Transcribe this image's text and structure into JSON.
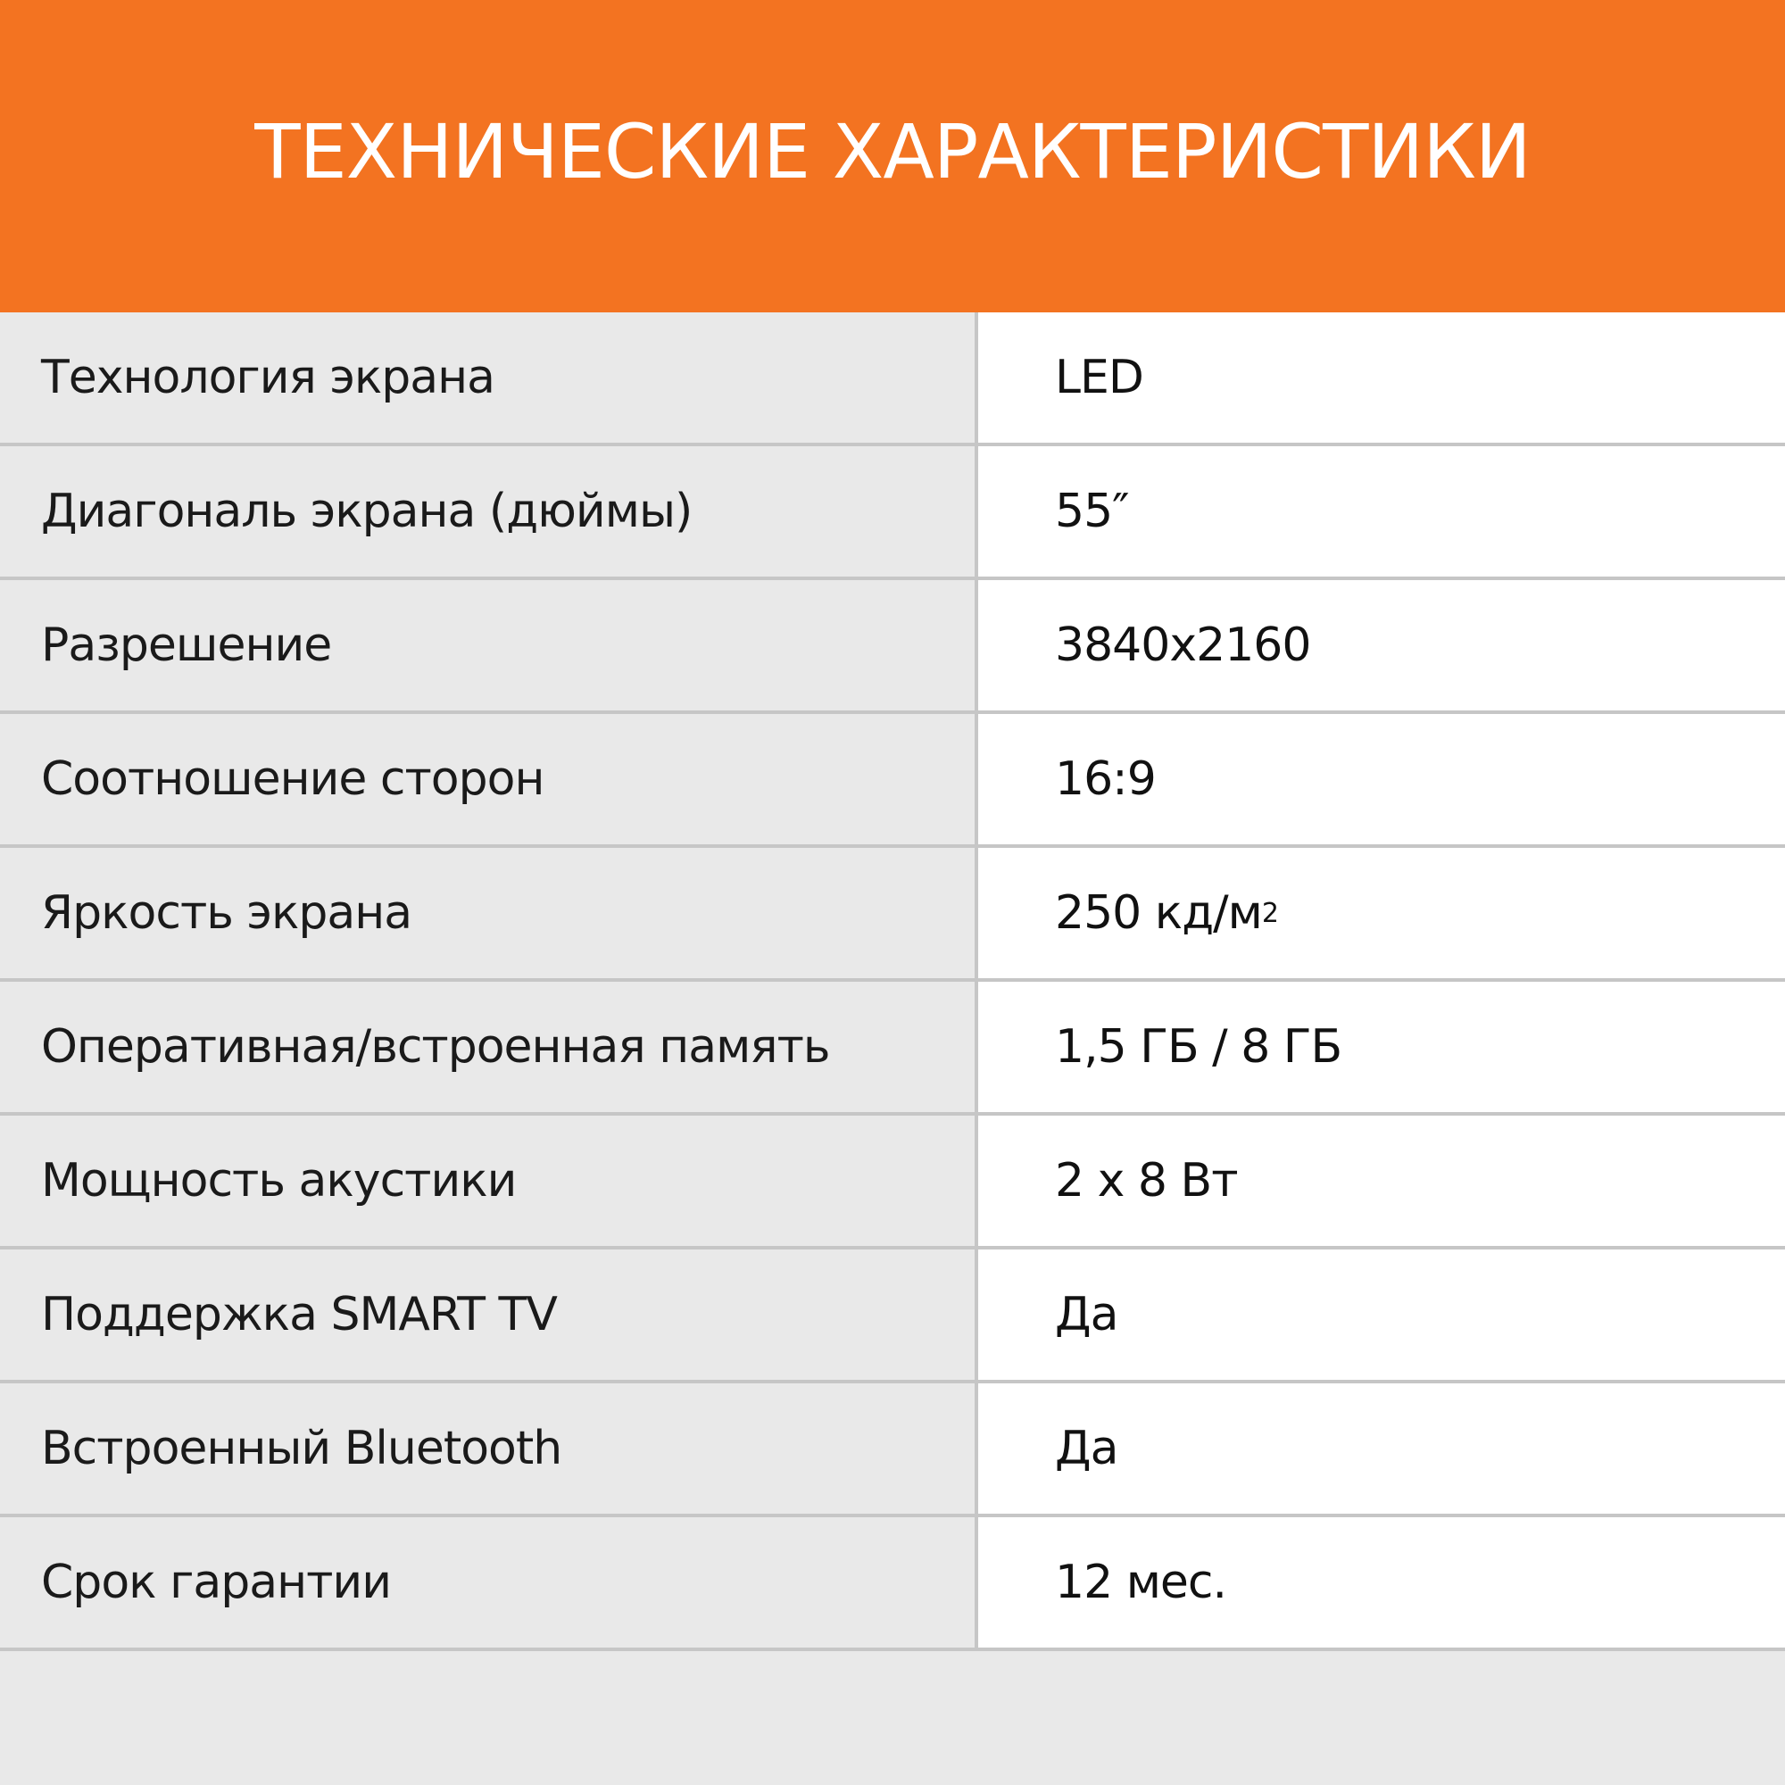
{
  "header": {
    "title": "ТЕХНИЧЕСКИЕ ХАРАКТЕРИСТИКИ"
  },
  "colors": {
    "accent": "#f37321",
    "label_bg": "#e9e9e9",
    "value_bg": "#ffffff",
    "divider": "#c6c6c6"
  },
  "specs": [
    {
      "label": "Технология экрана",
      "value": "LED"
    },
    {
      "label": "Диагональ экрана (дюймы)",
      "value": "55″"
    },
    {
      "label": "Разрешение",
      "value": "3840x2160"
    },
    {
      "label": "Соотношение сторон",
      "value": "16:9"
    },
    {
      "label": "Яркость экрана",
      "value": "250 кд/м",
      "value_sup": "2"
    },
    {
      "label": "Оперативная/встроенная память",
      "value": "1,5 ГБ / 8 ГБ"
    },
    {
      "label": "Мощность акустики",
      "value": "2 x 8 Вт"
    },
    {
      "label": "Поддержка SMART TV",
      "value": "Да"
    },
    {
      "label": "Встроенный Bluetooth",
      "value": "Да"
    },
    {
      "label": "Срок гарантии",
      "value": "12 мес."
    }
  ]
}
